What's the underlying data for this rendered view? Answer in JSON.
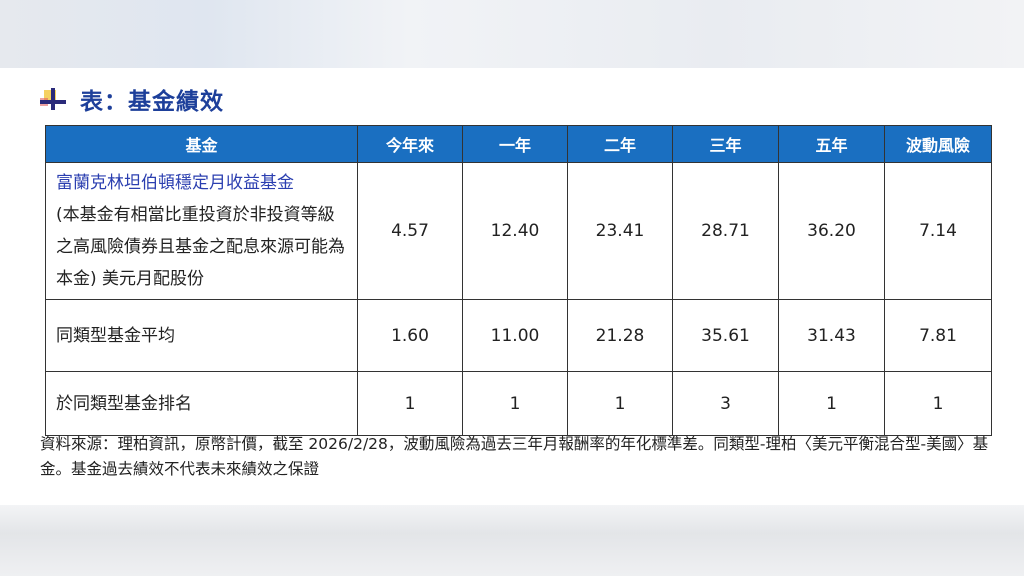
{
  "title": "表：基金績效",
  "table": {
    "headers": [
      "基金",
      "今年來",
      "一年",
      "二年",
      "三年",
      "五年",
      "波動風險"
    ],
    "rows": [
      {
        "name": "富蘭克林坦伯頓穩定月收益基金",
        "note": "(本基金有相當比重投資於非投資等級之高風險債券且基金之配息來源可能為本金) 美元月配股份",
        "values": [
          "4.57",
          "12.40",
          "23.41",
          "28.71",
          "36.20",
          "7.14"
        ]
      },
      {
        "name": "同類型基金平均",
        "values": [
          "1.60",
          "11.00",
          "21.28",
          "35.61",
          "31.43",
          "7.81"
        ]
      },
      {
        "name": "於同類型基金排名",
        "values": [
          "1",
          "1",
          "1",
          "3",
          "1",
          "1"
        ]
      }
    ]
  },
  "footnote": "資料來源：理柏資訊，原幣計價，截至 2026/2/28，波動風險為過去三年月報酬率的年化標準差。同類型-理柏〈美元平衡混合型-美國〉基金。基金過去績效不代表未來績效之保證",
  "colors": {
    "header": "#1a6fc1",
    "title": "#1d3f9a",
    "fund_name": "#2b3fb0"
  }
}
